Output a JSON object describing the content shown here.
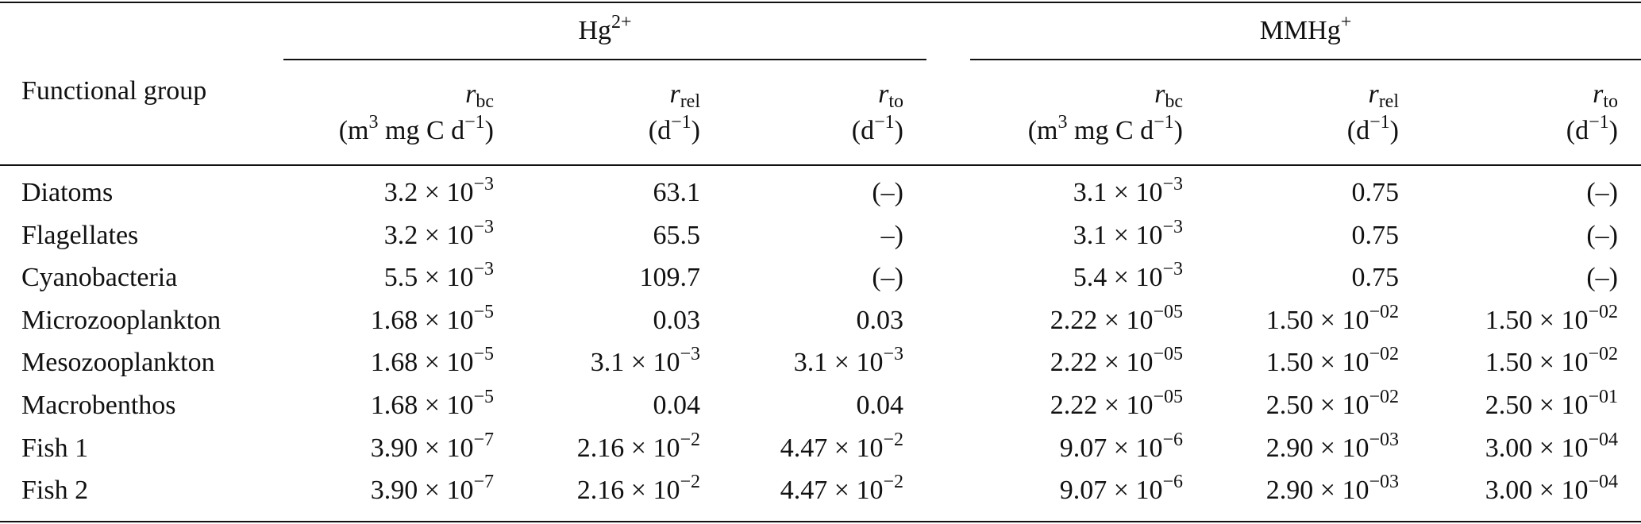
{
  "table": {
    "group_headers": {
      "hg": {
        "base": "Hg",
        "sup": "2+"
      },
      "mmhg": {
        "base": "MMHg",
        "sup": "+"
      }
    },
    "row_header": "Functional group",
    "columns": [
      {
        "symbol": "r",
        "sub": "bc",
        "unit_html": "(m<sup>3</sup> mg C d<sup>−1</sup>)"
      },
      {
        "symbol": "r",
        "sub": "rel",
        "unit_html": "(d<sup>−1</sup>)"
      },
      {
        "symbol": "r",
        "sub": "to",
        "unit_html": "(d<sup>−1</sup>)"
      },
      {
        "symbol": "r",
        "sub": "bc",
        "unit_html": "(m<sup>3</sup> mg C d<sup>−1</sup>)"
      },
      {
        "symbol": "r",
        "sub": "rel",
        "unit_html": "(d<sup>−1</sup>)"
      },
      {
        "symbol": "r",
        "sub": "to",
        "unit_html": "(d<sup>−1</sup>)"
      }
    ],
    "rows": [
      {
        "name": "Diatoms",
        "cells": [
          {
            "m": "3.2",
            "e": "−3"
          },
          {
            "plain": "63.1"
          },
          {
            "plain": "(–)"
          },
          {
            "m": "3.1",
            "e": "−3"
          },
          {
            "plain": "0.75"
          },
          {
            "plain": "(–)"
          }
        ]
      },
      {
        "name": "Flagellates",
        "cells": [
          {
            "m": "3.2",
            "e": "−3"
          },
          {
            "plain": "65.5"
          },
          {
            "plain": "–)"
          },
          {
            "m": "3.1",
            "e": "−3"
          },
          {
            "plain": "0.75"
          },
          {
            "plain": "(–)"
          }
        ]
      },
      {
        "name": "Cyanobacteria",
        "cells": [
          {
            "m": "5.5",
            "e": "−3"
          },
          {
            "plain": "109.7"
          },
          {
            "plain": "(–)"
          },
          {
            "m": "5.4",
            "e": "−3"
          },
          {
            "plain": "0.75"
          },
          {
            "plain": "(–)"
          }
        ]
      },
      {
        "name": "Microzooplankton",
        "cells": [
          {
            "m": "1.68",
            "e": "−5"
          },
          {
            "plain": "0.03"
          },
          {
            "plain": "0.03"
          },
          {
            "m": "2.22",
            "e": "−05"
          },
          {
            "m": "1.50",
            "e": "−02"
          },
          {
            "m": "1.50",
            "e": "−02"
          }
        ]
      },
      {
        "name": "Mesozooplankton",
        "cells": [
          {
            "m": "1.68",
            "e": "−5"
          },
          {
            "m": "3.1",
            "e": "−3"
          },
          {
            "m": "3.1",
            "e": "−3"
          },
          {
            "m": "2.22",
            "e": "−05"
          },
          {
            "m": "1.50",
            "e": "−02"
          },
          {
            "m": "1.50",
            "e": "−02"
          }
        ]
      },
      {
        "name": "Macrobenthos",
        "cells": [
          {
            "m": "1.68",
            "e": "−5"
          },
          {
            "plain": "0.04"
          },
          {
            "plain": "0.04"
          },
          {
            "m": "2.22",
            "e": "−05"
          },
          {
            "m": "2.50",
            "e": "−02"
          },
          {
            "m": "2.50",
            "e": "−01"
          }
        ]
      },
      {
        "name": "Fish 1",
        "cells": [
          {
            "m": "3.90",
            "e": "−7"
          },
          {
            "m": "2.16",
            "e": "−2"
          },
          {
            "m": "4.47",
            "e": "−2"
          },
          {
            "m": "9.07",
            "e": "−6"
          },
          {
            "m": "2.90",
            "e": "−03"
          },
          {
            "m": "3.00",
            "e": "−04"
          }
        ]
      },
      {
        "name": "Fish 2",
        "cells": [
          {
            "m": "3.90",
            "e": "−7"
          },
          {
            "m": "2.16",
            "e": "−2"
          },
          {
            "m": "4.47",
            "e": "−2"
          },
          {
            "m": "9.07",
            "e": "−6"
          },
          {
            "m": "2.90",
            "e": "−03"
          },
          {
            "m": "3.00",
            "e": "−04"
          }
        ]
      }
    ]
  }
}
